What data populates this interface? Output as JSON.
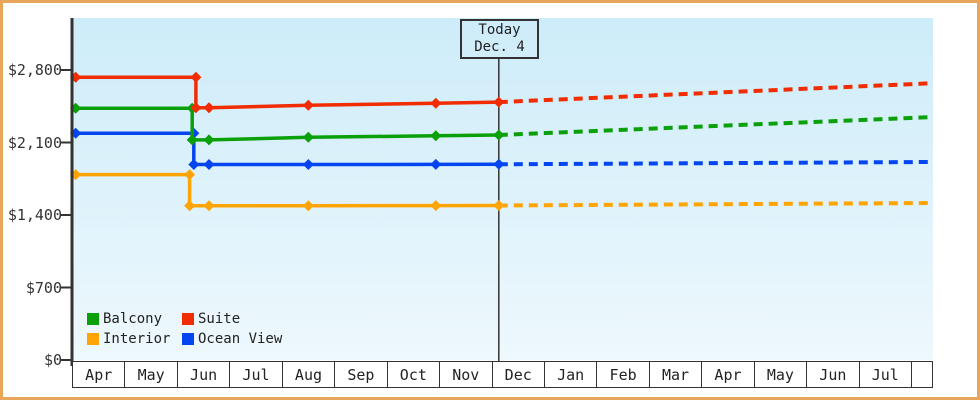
{
  "today_annotation": {
    "line1": "Today",
    "line2": "Dec. 4"
  },
  "legend": {
    "items": [
      {
        "label": "Balcony",
        "color": "#0aa00a"
      },
      {
        "label": "Suite",
        "color": "#f12c00"
      },
      {
        "label": "Interior",
        "color": "#ffa405"
      },
      {
        "label": "Ocean View",
        "color": "#0545f0"
      }
    ]
  },
  "chart_data": {
    "type": "line",
    "title": "",
    "xlabel": "",
    "ylabel": "",
    "x_categories": [
      "Apr",
      "May",
      "Jun",
      "Jul",
      "Aug",
      "Sep",
      "Oct",
      "Nov",
      "Dec",
      "Jan",
      "Feb",
      "Mar",
      "Apr",
      "May",
      "Jun",
      "Jul"
    ],
    "x_unit": "month position along axis (0 = start of first Apr, 1 unit = 1 month)",
    "ylim": [
      0,
      3300
    ],
    "y_tick_values": [
      0,
      700,
      1400,
      2100,
      2800
    ],
    "y_tick_labels": [
      "$0",
      "$700",
      "$1,400",
      "$2,100",
      "$2,800"
    ],
    "grid": false,
    "legend_position": "bottom-left inside plot",
    "today_month_index": 8.13,
    "today_label": "Today Dec. 4",
    "style": {
      "solid": "history before today",
      "dashed": "forecast after today",
      "marker": "diamond"
    },
    "series": [
      {
        "name": "Interior",
        "color": "#ffa405",
        "solid_points": [
          [
            0,
            1790
          ],
          [
            2.24,
            1790
          ],
          [
            2.24,
            1490
          ],
          [
            2.61,
            1490
          ],
          [
            4.5,
            1490
          ],
          [
            6.93,
            1491
          ],
          [
            8.13,
            1492
          ]
        ],
        "forecast_points": [
          [
            8.13,
            1492
          ],
          [
            16.35,
            1516
          ]
        ],
        "markers": [
          [
            0.07,
            1790
          ],
          [
            2.24,
            1790
          ],
          [
            2.24,
            1490
          ],
          [
            2.61,
            1490
          ],
          [
            4.5,
            1490
          ],
          [
            6.93,
            1491
          ],
          [
            8.13,
            1492
          ]
        ]
      },
      {
        "name": "Ocean View",
        "color": "#0545f0",
        "solid_points": [
          [
            0,
            2190
          ],
          [
            2.32,
            2190
          ],
          [
            2.32,
            1888
          ],
          [
            2.61,
            1888
          ],
          [
            4.5,
            1888
          ],
          [
            6.93,
            1889
          ],
          [
            8.13,
            1890
          ]
        ],
        "forecast_points": [
          [
            8.13,
            1890
          ],
          [
            16.35,
            1912
          ]
        ],
        "markers": [
          [
            0.07,
            2190
          ],
          [
            2.32,
            2190
          ],
          [
            2.32,
            1888
          ],
          [
            2.61,
            1888
          ],
          [
            4.5,
            1888
          ],
          [
            6.93,
            1889
          ],
          [
            8.13,
            1890
          ]
        ]
      },
      {
        "name": "Balcony",
        "color": "#0aa00a",
        "solid_points": [
          [
            0,
            2430
          ],
          [
            2.29,
            2430
          ],
          [
            2.29,
            2125
          ],
          [
            2.61,
            2125
          ],
          [
            4.5,
            2150
          ],
          [
            6.93,
            2165
          ],
          [
            8.13,
            2172
          ]
        ],
        "forecast_points": [
          [
            8.13,
            2172
          ],
          [
            16.35,
            2345
          ]
        ],
        "markers": [
          [
            0.07,
            2430
          ],
          [
            2.29,
            2430
          ],
          [
            2.29,
            2125
          ],
          [
            2.61,
            2125
          ],
          [
            4.5,
            2150
          ],
          [
            6.93,
            2165
          ],
          [
            8.13,
            2172
          ]
        ]
      },
      {
        "name": "Suite",
        "color": "#f12c00",
        "solid_points": [
          [
            0,
            2730
          ],
          [
            2.36,
            2730
          ],
          [
            2.36,
            2435
          ],
          [
            2.61,
            2435
          ],
          [
            4.5,
            2460
          ],
          [
            6.93,
            2478
          ],
          [
            8.13,
            2490
          ]
        ],
        "forecast_points": [
          [
            8.13,
            2490
          ],
          [
            16.35,
            2672
          ]
        ],
        "markers": [
          [
            0.07,
            2730
          ],
          [
            2.36,
            2730
          ],
          [
            2.36,
            2435
          ],
          [
            2.61,
            2435
          ],
          [
            4.5,
            2460
          ],
          [
            6.93,
            2478
          ],
          [
            8.13,
            2490
          ]
        ]
      }
    ]
  }
}
